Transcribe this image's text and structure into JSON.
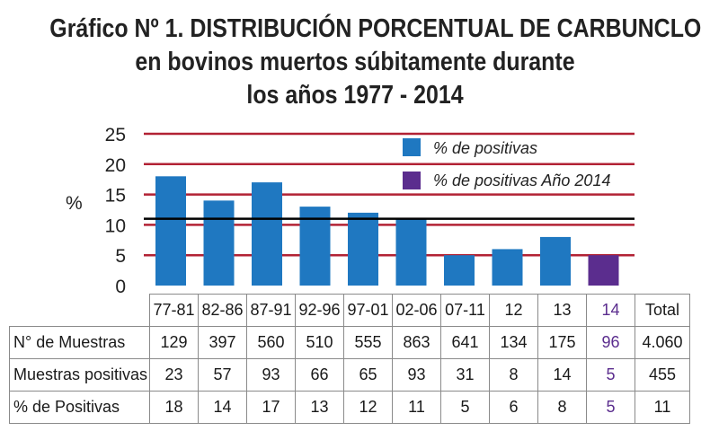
{
  "title_lines": [
    "Gráfico Nº 1. DISTRIBUCIÓN PORCENTUAL DE CARBUNCLO",
    "en bovinos muertos súbitamente durante",
    "los años 1977 - 2014"
  ],
  "colors": {
    "bar": "#1f78c1",
    "bar_2014": "#5b2d8e",
    "gridline": "#b22234",
    "mean_line": "#000000"
  },
  "chart_data": {
    "type": "bar",
    "ylabel": "%",
    "ylim": [
      0,
      25
    ],
    "yticks": [
      0,
      5,
      10,
      15,
      20,
      25
    ],
    "grid": true,
    "legend_position": "top-right",
    "categories": [
      "77-81",
      "82-86",
      "87-91",
      "92-96",
      "97-01",
      "02-06",
      "07-11",
      "12",
      "13",
      "14"
    ],
    "series": [
      {
        "name": "% de positivas",
        "values": [
          18,
          14,
          17,
          13,
          12,
          11,
          5,
          6,
          8,
          null
        ]
      },
      {
        "name": "% de positivas Año 2014",
        "values": [
          null,
          null,
          null,
          null,
          null,
          null,
          null,
          null,
          null,
          5
        ]
      }
    ],
    "reference_line": 11
  },
  "table": {
    "header_total": "Total",
    "rows": [
      {
        "label": "N° de Muestras",
        "values": [
          "129",
          "397",
          "560",
          "510",
          "555",
          "863",
          "641",
          "134",
          "175",
          "96"
        ],
        "total": "4.060"
      },
      {
        "label": "Muestras positivas",
        "values": [
          "23",
          "57",
          "93",
          "66",
          "65",
          "93",
          "31",
          "8",
          "14",
          "5"
        ],
        "total": "455"
      },
      {
        "label": "% de Positivas",
        "values": [
          "18",
          "14",
          "17",
          "13",
          "12",
          "11",
          "5",
          "6",
          "8",
          "5"
        ],
        "total": "11"
      }
    ]
  }
}
